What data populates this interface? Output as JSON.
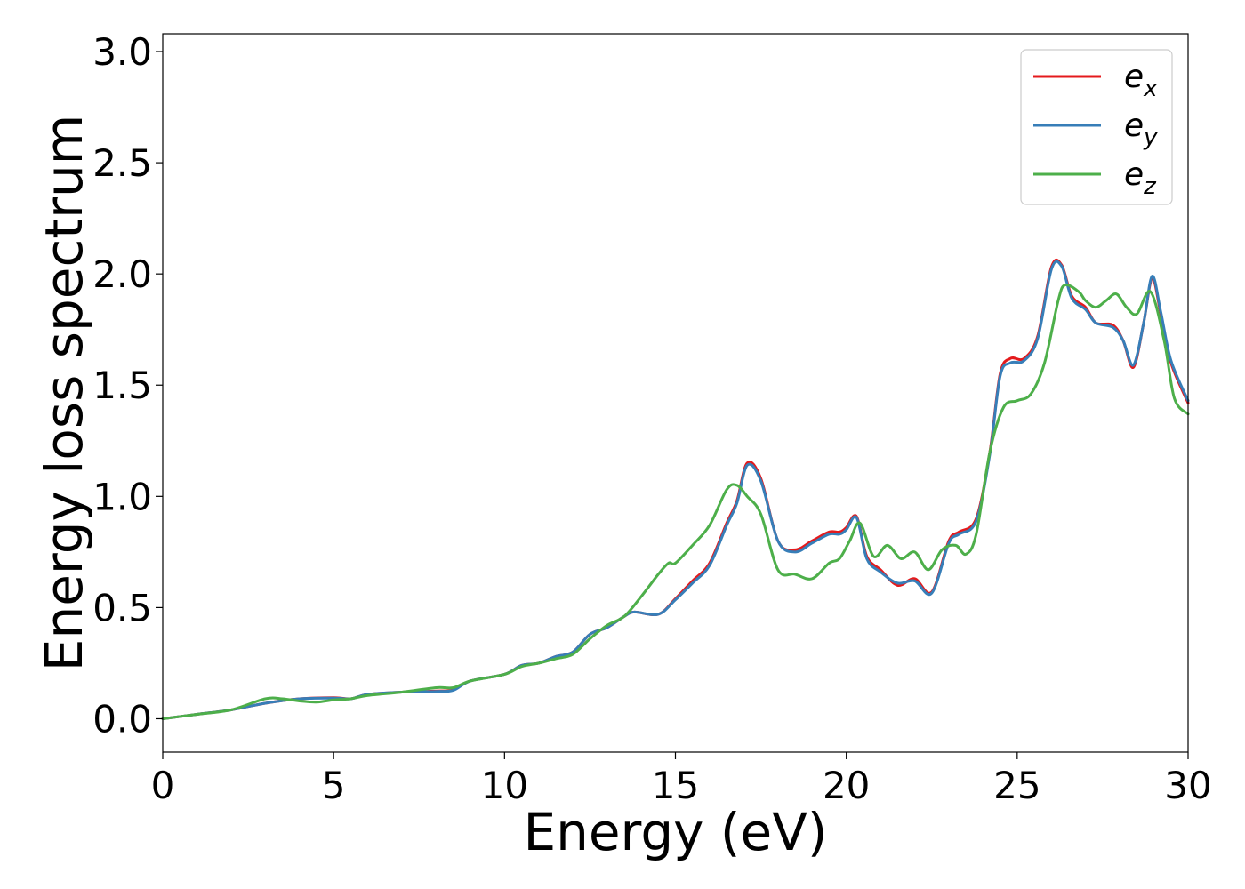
{
  "chart_data": {
    "type": "line",
    "title": "",
    "xlabel": "Energy (eV)",
    "ylabel": "Energy loss spectrum",
    "xlim": [
      0,
      30
    ],
    "ylim": [
      -0.15,
      3.08
    ],
    "xticks": [
      0,
      5,
      10,
      15,
      20,
      25,
      30
    ],
    "xtick_labels": [
      "0",
      "5",
      "10",
      "15",
      "20",
      "25",
      "30"
    ],
    "yticks": [
      0.0,
      0.5,
      1.0,
      1.5,
      2.0,
      2.5,
      3.0
    ],
    "ytick_labels": [
      "0.0",
      "0.5",
      "1.0",
      "1.5",
      "2.0",
      "2.5",
      "3.0"
    ],
    "grid": false,
    "legend_position": "top-right",
    "series": [
      {
        "name": "e_x",
        "legend_base": "e",
        "legend_sub": "x",
        "color": "#e41a1c",
        "x": [
          0,
          1,
          2,
          3,
          4,
          5,
          5.5,
          6,
          7,
          8,
          8.5,
          9,
          10,
          10.5,
          11,
          11.5,
          12,
          12.5,
          13,
          13.5,
          13.8,
          14.5,
          15,
          15.5,
          16,
          16.5,
          16.8,
          17.1,
          17.5,
          18,
          18.5,
          19,
          19.5,
          19.8,
          20,
          20.3,
          20.6,
          21,
          21.5,
          22,
          22.5,
          23,
          23.3,
          23.8,
          24.2,
          24.5,
          24.8,
          25.2,
          25.6,
          26,
          26.3,
          26.6,
          27,
          27.3,
          27.8,
          28.1,
          28.4,
          28.7,
          28.95,
          29.2,
          29.5,
          30
        ],
        "values": [
          0,
          0.02,
          0.04,
          0.07,
          0.09,
          0.095,
          0.09,
          0.11,
          0.12,
          0.125,
          0.13,
          0.17,
          0.2,
          0.24,
          0.25,
          0.28,
          0.3,
          0.38,
          0.41,
          0.46,
          0.48,
          0.47,
          0.54,
          0.62,
          0.7,
          0.88,
          0.98,
          1.15,
          1.08,
          0.8,
          0.76,
          0.8,
          0.84,
          0.84,
          0.86,
          0.91,
          0.73,
          0.67,
          0.6,
          0.63,
          0.57,
          0.8,
          0.84,
          0.9,
          1.2,
          1.55,
          1.62,
          1.62,
          1.72,
          2.03,
          2.04,
          1.9,
          1.85,
          1.78,
          1.77,
          1.7,
          1.58,
          1.78,
          1.98,
          1.82,
          1.6,
          1.42
        ]
      },
      {
        "name": "e_y",
        "legend_base": "e",
        "legend_sub": "y",
        "color": "#377eb8",
        "x": [
          0,
          1,
          2,
          3,
          4,
          5,
          5.5,
          6,
          7,
          8,
          8.5,
          9,
          10,
          10.5,
          11,
          11.5,
          12,
          12.5,
          13,
          13.5,
          13.8,
          14.5,
          15,
          15.5,
          16,
          16.5,
          16.8,
          17.1,
          17.5,
          18,
          18.5,
          19,
          19.5,
          19.8,
          20,
          20.3,
          20.6,
          21,
          21.5,
          22,
          22.5,
          23,
          23.3,
          23.8,
          24.2,
          24.5,
          24.8,
          25.2,
          25.6,
          26,
          26.3,
          26.6,
          27,
          27.3,
          27.8,
          28.1,
          28.4,
          28.7,
          28.95,
          29.2,
          29.5,
          30
        ],
        "values": [
          0,
          0.02,
          0.04,
          0.07,
          0.09,
          0.093,
          0.09,
          0.11,
          0.12,
          0.123,
          0.128,
          0.17,
          0.2,
          0.24,
          0.25,
          0.28,
          0.3,
          0.38,
          0.41,
          0.46,
          0.48,
          0.47,
          0.535,
          0.61,
          0.69,
          0.87,
          0.97,
          1.14,
          1.07,
          0.8,
          0.75,
          0.79,
          0.83,
          0.83,
          0.85,
          0.905,
          0.72,
          0.66,
          0.61,
          0.62,
          0.565,
          0.79,
          0.83,
          0.89,
          1.19,
          1.54,
          1.6,
          1.61,
          1.71,
          2.02,
          2.035,
          1.89,
          1.84,
          1.78,
          1.76,
          1.7,
          1.59,
          1.78,
          1.99,
          1.83,
          1.61,
          1.43
        ]
      },
      {
        "name": "e_z",
        "legend_base": "e",
        "legend_sub": "z",
        "color": "#4daf4a",
        "x": [
          0,
          1,
          2,
          3,
          3.5,
          4,
          4.5,
          5,
          5.5,
          6,
          7,
          8,
          8.5,
          9,
          10,
          10.5,
          11,
          11.5,
          12,
          12.5,
          13,
          13.5,
          14,
          14.5,
          14.8,
          15,
          15.5,
          16,
          16.5,
          16.8,
          17.1,
          17.5,
          18,
          18.5,
          19,
          19.5,
          19.8,
          20.1,
          20.4,
          20.8,
          21.2,
          21.6,
          22,
          22.4,
          22.8,
          23.2,
          23.5,
          23.8,
          24.2,
          24.6,
          25,
          25.4,
          25.8,
          26.2,
          26.4,
          26.8,
          27,
          27.3,
          27.6,
          27.9,
          28.2,
          28.5,
          28.9,
          29.3,
          29.6,
          30
        ],
        "values": [
          0,
          0.02,
          0.04,
          0.09,
          0.09,
          0.08,
          0.075,
          0.085,
          0.09,
          0.105,
          0.12,
          0.14,
          0.14,
          0.17,
          0.2,
          0.235,
          0.25,
          0.27,
          0.29,
          0.36,
          0.42,
          0.46,
          0.55,
          0.65,
          0.7,
          0.7,
          0.78,
          0.87,
          1.03,
          1.05,
          1.0,
          0.92,
          0.67,
          0.65,
          0.63,
          0.7,
          0.72,
          0.8,
          0.88,
          0.73,
          0.78,
          0.72,
          0.75,
          0.67,
          0.76,
          0.78,
          0.74,
          0.83,
          1.2,
          1.4,
          1.43,
          1.46,
          1.6,
          1.88,
          1.95,
          1.92,
          1.88,
          1.85,
          1.88,
          1.91,
          1.85,
          1.82,
          1.92,
          1.7,
          1.44,
          1.37
        ]
      }
    ]
  }
}
